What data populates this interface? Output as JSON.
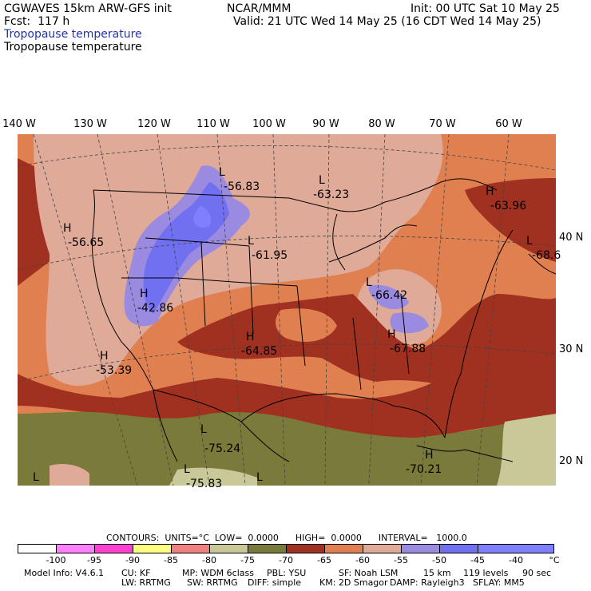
{
  "header": {
    "model_title": "CGWAVES 15km ARW-GFS init",
    "org": "NCAR/MMM",
    "init": "Init: 00 UTC Sat 10 May 25",
    "fcst": "Fcst:  117 h",
    "valid": "Valid: 21 UTC Wed 14 May 25 (16 CDT Wed 14 May 25)",
    "field_shaded": "Tropopause temperature",
    "field_contour": "Tropopause temperature"
  },
  "map": {
    "longitude_labels": [
      "140 W",
      "130 W",
      "120 W",
      "110 W",
      "100 W",
      "90 W",
      "80 W",
      "70 W",
      "60 W"
    ],
    "latitude_labels": [
      "40 N",
      "30 N",
      "20 N"
    ],
    "markers": [
      {
        "sym": "H",
        "value": "-56.65"
      },
      {
        "sym": "L",
        "value": "-56.83"
      },
      {
        "sym": "L",
        "value": "-63.23"
      },
      {
        "sym": "H",
        "value": "-63.96"
      },
      {
        "sym": "L",
        "value": "-68.6"
      },
      {
        "sym": "L",
        "value": "-61.95"
      },
      {
        "sym": "H",
        "value": "-42.86"
      },
      {
        "sym": "L",
        "value": "-66.42"
      },
      {
        "sym": "H",
        "value": "-64.85"
      },
      {
        "sym": "H",
        "value": "-67.88"
      },
      {
        "sym": "H",
        "value": "-53.39"
      },
      {
        "sym": "L",
        "value": "-75.24"
      },
      {
        "sym": "L",
        "value": "-75.83"
      },
      {
        "sym": "H",
        "value": "-70.21"
      },
      {
        "sym": "L",
        "value": ""
      },
      {
        "sym": "L",
        "value": ""
      }
    ]
  },
  "contours": {
    "text": "CONTOURS:  UNITS=°C  LOW=  0.0000      HIGH=  0.0000      INTERVAL=   1000.0"
  },
  "colorbar": {
    "labels": [
      "-100",
      "-95",
      "-90",
      "-85",
      "-80",
      "-75",
      "-70",
      "-65",
      "-60",
      "-55",
      "-50",
      "-45",
      "-40",
      "°C"
    ],
    "colors": [
      "#ffffff",
      "#ff80ff",
      "#ff40d0",
      "#ffff80",
      "#f08080",
      "#c8c898",
      "#7a7a3a",
      "#a03020",
      "#e08050",
      "#e0aa98",
      "#9a8ae0",
      "#7070f0",
      "#8080ff"
    ]
  },
  "footer": {
    "line1": [
      "Model Info: V4.6.1",
      "CU: KF",
      "MP: WDM 6class",
      "PBL: YSU",
      "SF: Noah LSM",
      "15 km",
      "119 levels",
      "90 sec"
    ],
    "line2": [
      "LW: RRTMG",
      "SW: RRTMG",
      "DIFF: simple",
      "KM: 2D Smagor",
      "DAMP: Rayleigh3",
      "SFLAY: MM5"
    ]
  }
}
